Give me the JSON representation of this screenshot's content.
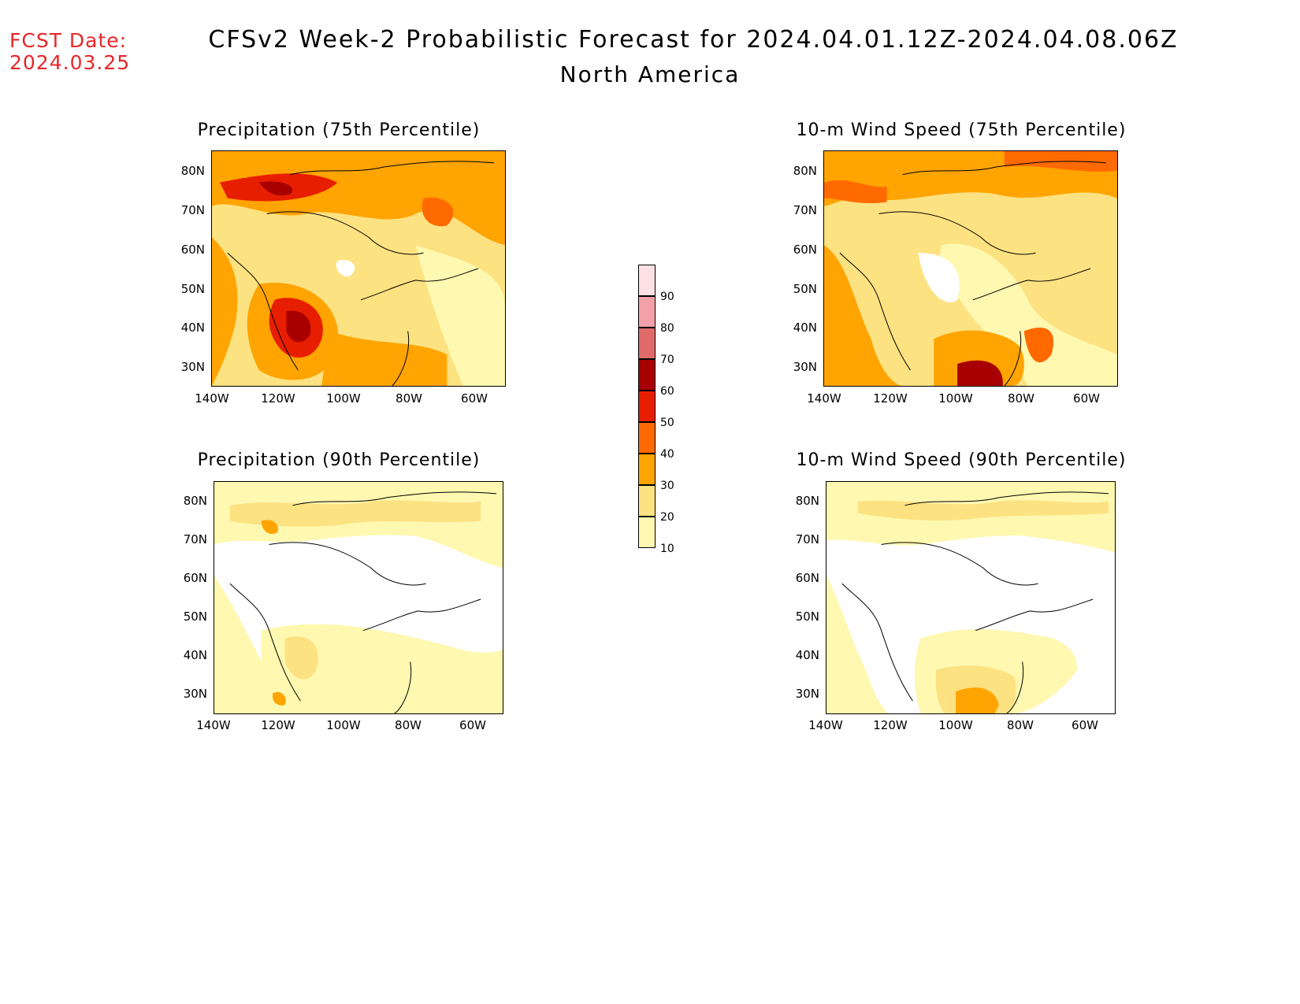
{
  "header": {
    "fcst_label": "FCST Date:",
    "fcst_date": "2024.03.25",
    "title": "CFSv2 Week-2 Probabilistic Forecast for 2024.04.01.12Z-2024.04.08.06Z",
    "subtitle": "North America"
  },
  "axes": {
    "lat_labels": [
      "80N",
      "70N",
      "60N",
      "50N",
      "40N",
      "30N"
    ],
    "lon_labels": [
      "140W",
      "120W",
      "100W",
      "80W",
      "60W"
    ]
  },
  "panels": [
    {
      "title": "Precipitation (75th Percentile)"
    },
    {
      "title": "10-m Wind Speed (75th Percentile)"
    },
    {
      "title": "Precipitation (90th Percentile)"
    },
    {
      "title": "10-m Wind Speed (90th Percentile)"
    }
  ],
  "colorbar": {
    "levels": [
      "90",
      "80",
      "70",
      "60",
      "50",
      "40",
      "30",
      "20",
      "10"
    ],
    "colors": [
      "#fde0e4",
      "#f4a0a8",
      "#e06a6a",
      "#a80000",
      "#e81e00",
      "#ff6a00",
      "#ffa400",
      "#fde282",
      "#fef8b0"
    ]
  },
  "colors": {
    "fcst": "#e8262a",
    "level_10": "#fef8b0",
    "level_20": "#fde282",
    "level_30": "#ffa400",
    "level_40": "#ff6a00",
    "level_50": "#e81e00",
    "level_60": "#a80000"
  }
}
